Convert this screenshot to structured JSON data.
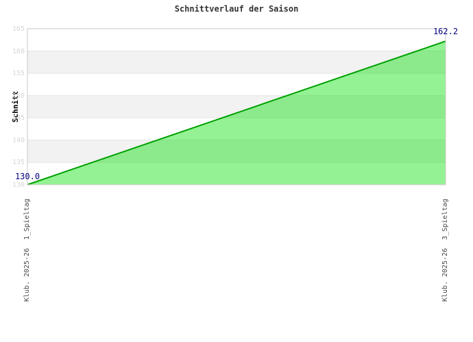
{
  "chart_data": {
    "type": "area",
    "title": "Schnittverlauf der Saison",
    "ylabel": "Schnitt",
    "xlabel": "",
    "x": [
      "Klub. 2025-26  1_Spieltag",
      "Klub. 2025-26  3_Spieltag"
    ],
    "values": [
      130.0,
      162.2
    ],
    "point_labels": [
      "130.0",
      "162.2"
    ],
    "ylim": [
      130,
      165
    ],
    "ytick_step": 5,
    "yticks": [
      130,
      135,
      140,
      145,
      150,
      155,
      160,
      165
    ],
    "gray_bands": [
      [
        135,
        140
      ],
      [
        145,
        150
      ],
      [
        155,
        160
      ]
    ],
    "grid": true,
    "legend": "none",
    "colors": {
      "line": "#00a000",
      "fill": "#00e000",
      "fill_opacity": 0.42,
      "band": "#f2f2f2",
      "gridline": "#e3e3e3",
      "border": "#c8c8c8",
      "point_label": "#000080",
      "tick_label": "#d6d6d6",
      "x_label": "#4a4a4a",
      "title": "#333333"
    }
  }
}
